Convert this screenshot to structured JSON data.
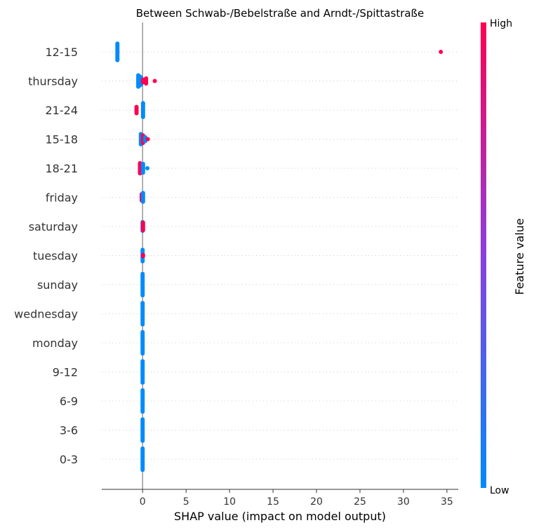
{
  "chart_data": {
    "type": "scatter",
    "subtype": "shap-beeswarm",
    "title": "Between Schwab-/Bebelstraße and Arndt-/Spittastraße",
    "xlabel": "SHAP value (impact on model output)",
    "ylabel": "",
    "xlim": [
      -4.7,
      36.3
    ],
    "xticks": [
      0,
      5,
      10,
      15,
      20,
      25,
      30,
      35
    ],
    "grid": "dotted horizontal row lines",
    "colorbar": {
      "label": "Feature value",
      "high_label": "High",
      "low_label": "Low",
      "high_color": "#ff0051",
      "low_color": "#008bfb"
    },
    "features": [
      {
        "name": "12-15",
        "points": [
          {
            "x": -2.9,
            "high": false,
            "n": 14
          },
          {
            "x": 34.3,
            "high": true,
            "n": 1
          }
        ]
      },
      {
        "name": "thursday",
        "points": [
          {
            "x": -0.5,
            "high": false,
            "n": 10
          },
          {
            "x": -0.3,
            "high": false,
            "n": 8
          },
          {
            "x": -0.15,
            "high": false,
            "n": 6
          },
          {
            "x": 0.05,
            "high": true,
            "n": 3
          },
          {
            "x": 0.4,
            "high": true,
            "n": 5
          },
          {
            "x": 1.4,
            "high": true,
            "n": 1
          }
        ]
      },
      {
        "name": "21-24",
        "points": [
          {
            "x": -0.7,
            "high": true,
            "n": 6
          },
          {
            "x": 0.05,
            "high": false,
            "n": 12
          }
        ]
      },
      {
        "name": "15-18",
        "points": [
          {
            "x": -0.2,
            "high": false,
            "n": 9
          },
          {
            "x": 0.05,
            "high": true,
            "n": 7
          },
          {
            "x": 0.3,
            "high": false,
            "n": 4
          },
          {
            "x": 0.6,
            "high": true,
            "n": 1
          }
        ]
      },
      {
        "name": "18-21",
        "points": [
          {
            "x": -0.3,
            "high": true,
            "n": 9
          },
          {
            "x": 0.05,
            "high": false,
            "n": 8
          },
          {
            "x": 0.55,
            "high": false,
            "n": 1
          }
        ]
      },
      {
        "name": "friday",
        "points": [
          {
            "x": -0.1,
            "high": true,
            "n": 6
          },
          {
            "x": 0.05,
            "high": false,
            "n": 8
          }
        ]
      },
      {
        "name": "saturday",
        "points": [
          {
            "x": 0.0,
            "high": false,
            "n": 8
          },
          {
            "x": 0.05,
            "high": true,
            "n": 7
          }
        ]
      },
      {
        "name": "tuesday",
        "points": [
          {
            "x": 0.0,
            "high": false,
            "n": 10
          },
          {
            "x": 0.05,
            "high": true,
            "n": 2
          }
        ]
      },
      {
        "name": "sunday",
        "points": [
          {
            "x": 0.0,
            "high": false,
            "n": 18
          }
        ]
      },
      {
        "name": "wednesday",
        "points": [
          {
            "x": 0.0,
            "high": false,
            "n": 18
          }
        ]
      },
      {
        "name": "monday",
        "points": [
          {
            "x": 0.0,
            "high": false,
            "n": 18
          }
        ]
      },
      {
        "name": "9-12",
        "points": [
          {
            "x": 0.0,
            "high": false,
            "n": 18
          }
        ]
      },
      {
        "name": "6-9",
        "points": [
          {
            "x": 0.0,
            "high": false,
            "n": 18
          }
        ]
      },
      {
        "name": "3-6",
        "points": [
          {
            "x": 0.0,
            "high": false,
            "n": 18
          }
        ]
      },
      {
        "name": "0-3",
        "points": [
          {
            "x": 0.0,
            "high": false,
            "n": 18
          }
        ]
      }
    ]
  }
}
